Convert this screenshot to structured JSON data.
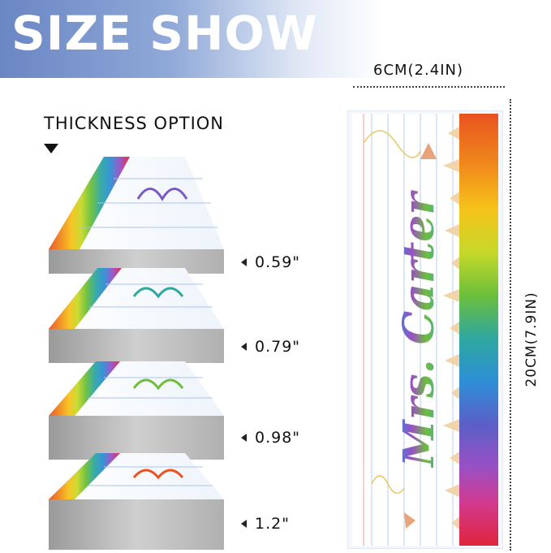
{
  "banner": {
    "title": "SIZE SHOW"
  },
  "thickness": {
    "title": "THICKNESS OPTION",
    "options": [
      "0.59\"",
      "0.79\"",
      "0.98\"",
      "1.2\""
    ]
  },
  "dimensions": {
    "width": "6CM(2.4IN)",
    "height": "20CM(7.9IN)"
  },
  "sign": {
    "name": "Mrs. Carter"
  },
  "colors": {
    "banner_start": "#6a86c4",
    "banner_end": "#dfe7f5",
    "pencil_colors": [
      "#e8531f",
      "#f08a1c",
      "#f6c21a",
      "#c7d92a",
      "#6cbf3a",
      "#2fa7a0",
      "#2e8fd6",
      "#5b5fc7",
      "#9b4fc4",
      "#d23a8f",
      "#e0243c"
    ]
  }
}
